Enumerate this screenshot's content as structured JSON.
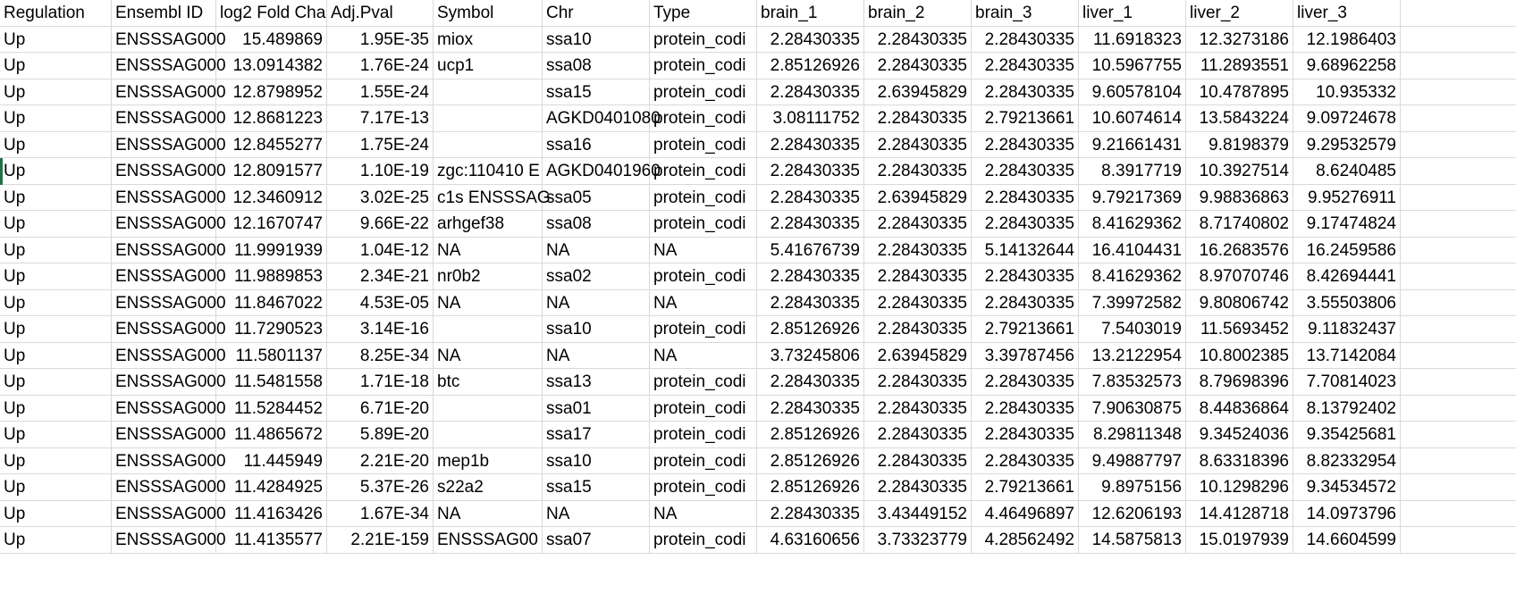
{
  "colors": {
    "gridline": "#d9d9d9",
    "selection": "#217346"
  },
  "columns": [
    {
      "label": "Regulation",
      "align": "txt"
    },
    {
      "label": "Ensembl ID",
      "align": "txt"
    },
    {
      "label": "log2 Fold Cha",
      "align": "txt"
    },
    {
      "label": "Adj.Pval",
      "align": "txt"
    },
    {
      "label": "Symbol",
      "align": "txt"
    },
    {
      "label": "Chr",
      "align": "txt"
    },
    {
      "label": "Type",
      "align": "txt"
    },
    {
      "label": "brain_1",
      "align": "txt"
    },
    {
      "label": "brain_2",
      "align": "txt"
    },
    {
      "label": "brain_3",
      "align": "txt"
    },
    {
      "label": "liver_1",
      "align": "txt"
    },
    {
      "label": "liver_2",
      "align": "txt"
    },
    {
      "label": "liver_3",
      "align": "txt"
    },
    {
      "label": "",
      "align": "txt"
    }
  ],
  "cell_align": [
    "txt",
    "txt",
    "num",
    "num",
    "txt",
    "txt",
    "txt",
    "num",
    "num",
    "num",
    "num",
    "num",
    "num",
    "num"
  ],
  "rows": [
    [
      "Up",
      "ENSSSAG000",
      "15.489869",
      "1.95E-35",
      "miox",
      "ssa10",
      "protein_codi",
      "2.28430335",
      "2.28430335",
      "2.28430335",
      "11.6918323",
      "12.3273186",
      "12.1986403",
      ""
    ],
    [
      "Up",
      "ENSSSAG000",
      "13.0914382",
      "1.76E-24",
      "ucp1",
      "ssa08",
      "protein_codi",
      "2.85126926",
      "2.28430335",
      "2.28430335",
      "10.5967755",
      "11.2893551",
      "9.68962258",
      ""
    ],
    [
      "Up",
      "ENSSSAG000",
      "12.8798952",
      "1.55E-24",
      "",
      "ssa15",
      "protein_codi",
      "2.28430335",
      "2.63945829",
      "2.28430335",
      "9.60578104",
      "10.4787895",
      "10.935332",
      ""
    ],
    [
      "Up",
      "ENSSSAG000",
      "12.8681223",
      "7.17E-13",
      "",
      "AGKD0401080",
      "protein_codi",
      "3.08111752",
      "2.28430335",
      "2.79213661",
      "10.6074614",
      "13.5843224",
      "9.09724678",
      ""
    ],
    [
      "Up",
      "ENSSSAG000",
      "12.8455277",
      "1.75E-24",
      "",
      "ssa16",
      "protein_codi",
      "2.28430335",
      "2.28430335",
      "2.28430335",
      "9.21661431",
      "9.8198379",
      "9.29532579",
      ""
    ],
    [
      "Up",
      "ENSSSAG000",
      "12.8091577",
      "1.10E-19",
      "zgc:110410 E",
      "AGKD0401960",
      "protein_codi",
      "2.28430335",
      "2.28430335",
      "2.28430335",
      "8.3917719",
      "10.3927514",
      "8.6240485",
      ""
    ],
    [
      "Up",
      "ENSSSAG000",
      "12.3460912",
      "3.02E-25",
      "c1s ENSSSAG",
      "ssa05",
      "protein_codi",
      "2.28430335",
      "2.63945829",
      "2.28430335",
      "9.79217369",
      "9.98836863",
      "9.95276911",
      ""
    ],
    [
      "Up",
      "ENSSSAG000",
      "12.1670747",
      "9.66E-22",
      "arhgef38",
      "ssa08",
      "protein_codi",
      "2.28430335",
      "2.28430335",
      "2.28430335",
      "8.41629362",
      "8.71740802",
      "9.17474824",
      ""
    ],
    [
      "Up",
      "ENSSSAG000",
      "11.9991939",
      "1.04E-12",
      "NA",
      "NA",
      "NA",
      "5.41676739",
      "2.28430335",
      "5.14132644",
      "16.4104431",
      "16.2683576",
      "16.2459586",
      ""
    ],
    [
      "Up",
      "ENSSSAG000",
      "11.9889853",
      "2.34E-21",
      "nr0b2",
      "ssa02",
      "protein_codi",
      "2.28430335",
      "2.28430335",
      "2.28430335",
      "8.41629362",
      "8.97070746",
      "8.42694441",
      ""
    ],
    [
      "Up",
      "ENSSSAG000",
      "11.8467022",
      "4.53E-05",
      "NA",
      "NA",
      "NA",
      "2.28430335",
      "2.28430335",
      "2.28430335",
      "7.39972582",
      "9.80806742",
      "3.55503806",
      ""
    ],
    [
      "Up",
      "ENSSSAG000",
      "11.7290523",
      "3.14E-16",
      "",
      "ssa10",
      "protein_codi",
      "2.85126926",
      "2.28430335",
      "2.79213661",
      "7.5403019",
      "11.5693452",
      "9.11832437",
      ""
    ],
    [
      "Up",
      "ENSSSAG000",
      "11.5801137",
      "8.25E-34",
      "NA",
      "NA",
      "NA",
      "3.73245806",
      "2.63945829",
      "3.39787456",
      "13.2122954",
      "10.8002385",
      "13.7142084",
      ""
    ],
    [
      "Up",
      "ENSSSAG000",
      "11.5481558",
      "1.71E-18",
      "btc",
      "ssa13",
      "protein_codi",
      "2.28430335",
      "2.28430335",
      "2.28430335",
      "7.83532573",
      "8.79698396",
      "7.70814023",
      ""
    ],
    [
      "Up",
      "ENSSSAG000",
      "11.5284452",
      "6.71E-20",
      "",
      "ssa01",
      "protein_codi",
      "2.28430335",
      "2.28430335",
      "2.28430335",
      "7.90630875",
      "8.44836864",
      "8.13792402",
      ""
    ],
    [
      "Up",
      "ENSSSAG000",
      "11.4865672",
      "5.89E-20",
      "",
      "ssa17",
      "protein_codi",
      "2.85126926",
      "2.28430335",
      "2.28430335",
      "8.29811348",
      "9.34524036",
      "9.35425681",
      ""
    ],
    [
      "Up",
      "ENSSSAG000",
      "11.445949",
      "2.21E-20",
      "mep1b",
      "ssa10",
      "protein_codi",
      "2.85126926",
      "2.28430335",
      "2.28430335",
      "9.49887797",
      "8.63318396",
      "8.82332954",
      ""
    ],
    [
      "Up",
      "ENSSSAG000",
      "11.4284925",
      "5.37E-26",
      "s22a2",
      "ssa15",
      "protein_codi",
      "2.85126926",
      "2.28430335",
      "2.79213661",
      "9.8975156",
      "10.1298296",
      "9.34534572",
      ""
    ],
    [
      "Up",
      "ENSSSAG000",
      "11.4163426",
      "1.67E-34",
      "NA",
      "NA",
      "NA",
      "2.28430335",
      "3.43449152",
      "4.46496897",
      "12.6206193",
      "14.4128718",
      "14.0973796",
      ""
    ],
    [
      "Up",
      "ENSSSAG000",
      "11.4135577",
      "2.21E-159",
      "ENSSSAG00",
      "ssa07",
      "protein_codi",
      "4.63160656",
      "3.73323779",
      "4.28562492",
      "14.5875813",
      "15.0197939",
      "14.6604599",
      ""
    ]
  ]
}
